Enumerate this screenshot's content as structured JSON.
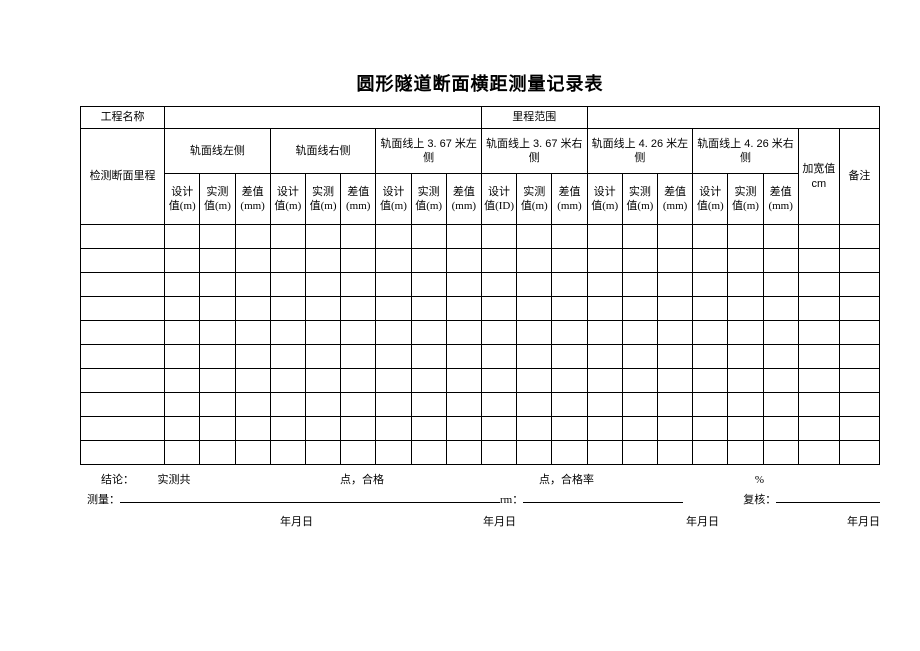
{
  "title": "圆形隧道断面横距测量记录表",
  "header": {
    "project_label": "工程名称",
    "mileage_range_label": "里程范围",
    "section_mileage_label": "检测断面里程",
    "groups": [
      {
        "title": "轨面线左侧",
        "sub": [
          "设计值(m)",
          "实测值(m)",
          "差值(mm)"
        ]
      },
      {
        "title": "轨面线右侧",
        "sub": [
          "设计值(m)",
          "实测值(m)",
          "差值(mm)"
        ]
      },
      {
        "title": "轨面线上 3. 67 米左侧",
        "sub": [
          "设计值(m)",
          "实测值(m)",
          "差值(mm)"
        ]
      },
      {
        "title": "轨面线上 3. 67 米右侧",
        "sub": [
          "设计值(ID)",
          "实测值(m)",
          "差值(mm)"
        ]
      },
      {
        "title": "轨面线上 4. 26 米左侧",
        "sub": [
          "设计值(m)",
          "实测值(m)",
          "差值(mm)"
        ]
      },
      {
        "title": "轨面线上 4. 26 米右侧",
        "sub": [
          "设计值(m)",
          "实测值(m)",
          "差值(mm)"
        ]
      }
    ],
    "widen_label": "加宽值cm",
    "remark_label": "备注"
  },
  "empty_rows": 10,
  "footer": {
    "conclusion_label": "结论：",
    "measured_total": "实测共",
    "points_pass": "点，合格",
    "points_passrate": "点，合格率",
    "percent": "%",
    "measure_label": "测量：",
    "rm_label": "rm：",
    "review_label": "复核：",
    "date_label": "年月日"
  },
  "colors": {
    "border": "#000000",
    "bg": "#ffffff",
    "text": "#000000"
  },
  "layout": {
    "cols": 21,
    "col_widths_pct": [
      8.3,
      3.6,
      3.6,
      3.6,
      3.6,
      3.6,
      3.6,
      3.6,
      3.6,
      3.6,
      3.6,
      3.6,
      3.6,
      3.6,
      3.6,
      3.6,
      3.6,
      3.6,
      3.6,
      4.2,
      4.1
    ]
  }
}
